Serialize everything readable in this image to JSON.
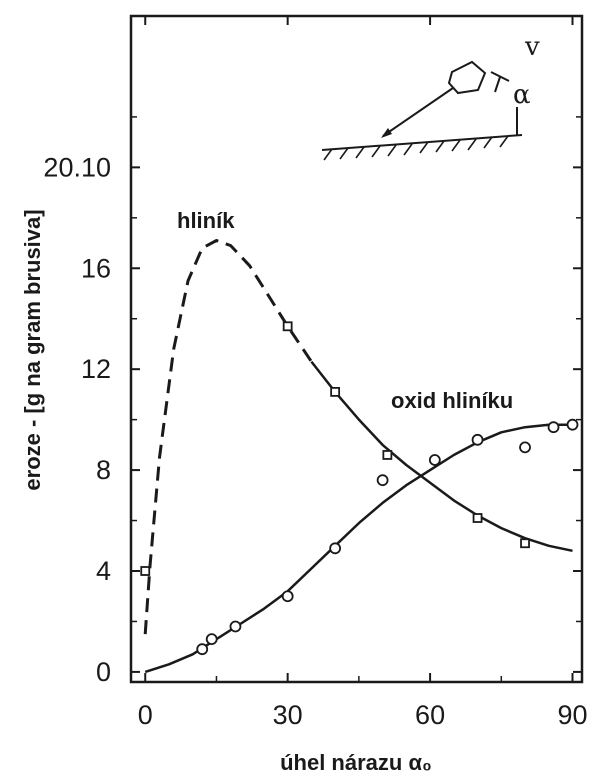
{
  "chart_data": {
    "type": "line",
    "xlabel": "úhel nárazu α₀",
    "ylabel": "eroze - [g na gram brusiva]",
    "xlim": [
      -3,
      92
    ],
    "ylim": [
      -0.4,
      26
    ],
    "x_ticks": [
      {
        "value": 0,
        "label": "0"
      },
      {
        "value": 30,
        "label": "30"
      },
      {
        "value": 60,
        "label": "60"
      },
      {
        "value": 90,
        "label": "90"
      }
    ],
    "y_ticks": [
      {
        "value": 0,
        "label": "0"
      },
      {
        "value": 4,
        "label": "4"
      },
      {
        "value": 8,
        "label": "8"
      },
      {
        "value": 12,
        "label": "12"
      },
      {
        "value": 16,
        "label": "16"
      },
      {
        "value": 20,
        "label": "20.10"
      }
    ],
    "grid": false,
    "series": [
      {
        "name": "hliník",
        "points": [
          {
            "x": 0,
            "y": 1.5,
            "label": "",
            "dashed": true
          },
          {
            "x": 1,
            "y": 4.2,
            "label": "",
            "dashed": true
          },
          {
            "x": 3,
            "y": 8.5,
            "label": "",
            "dashed": true
          },
          {
            "x": 6,
            "y": 12.8,
            "label": "",
            "dashed": true
          },
          {
            "x": 9,
            "y": 15.5,
            "label": "",
            "dashed": true
          },
          {
            "x": 12,
            "y": 16.8,
            "label": "",
            "dashed": true
          },
          {
            "x": 15,
            "y": 17.1,
            "label": "",
            "dashed": true
          },
          {
            "x": 18,
            "y": 16.9,
            "label": "",
            "dashed": true
          },
          {
            "x": 22,
            "y": 16.1,
            "label": "",
            "dashed": true
          },
          {
            "x": 26,
            "y": 14.9,
            "label": "",
            "dashed": true
          },
          {
            "x": 30,
            "y": 13.7,
            "label": "",
            "dashed": true
          },
          {
            "x": 35,
            "y": 12.3,
            "label": "",
            "dashed": true
          },
          {
            "x": 40,
            "y": 11.1,
            "label": "",
            "dashed": false
          },
          {
            "x": 45,
            "y": 10.0,
            "label": "",
            "dashed": false
          },
          {
            "x": 50,
            "y": 9.0,
            "label": "",
            "dashed": false
          },
          {
            "x": 55,
            "y": 8.2,
            "label": "",
            "dashed": false
          },
          {
            "x": 60,
            "y": 7.5,
            "label": "",
            "dashed": false
          },
          {
            "x": 65,
            "y": 6.8,
            "label": "",
            "dashed": false
          },
          {
            "x": 70,
            "y": 6.2,
            "label": "",
            "dashed": false
          },
          {
            "x": 75,
            "y": 5.7,
            "label": "",
            "dashed": false
          },
          {
            "x": 80,
            "y": 5.3,
            "label": "",
            "dashed": false
          },
          {
            "x": 85,
            "y": 5.0,
            "label": "",
            "dashed": false
          },
          {
            "x": 90,
            "y": 4.8,
            "label": "",
            "dashed": false
          }
        ],
        "markers": [
          {
            "x": 0,
            "y": 4.0,
            "shape": "square"
          },
          {
            "x": 30,
            "y": 13.7,
            "shape": "square"
          },
          {
            "x": 40,
            "y": 11.1,
            "shape": "square"
          },
          {
            "x": 51,
            "y": 8.6,
            "shape": "square"
          },
          {
            "x": 70,
            "y": 6.1,
            "shape": "square"
          },
          {
            "x": 80,
            "y": 5.1,
            "shape": "square"
          }
        ]
      },
      {
        "name": "oxid hliníku",
        "points": [
          {
            "x": 0,
            "y": 0.0,
            "label": ""
          },
          {
            "x": 5,
            "y": 0.3,
            "label": ""
          },
          {
            "x": 10,
            "y": 0.7,
            "label": ""
          },
          {
            "x": 15,
            "y": 1.3,
            "label": ""
          },
          {
            "x": 20,
            "y": 1.9,
            "label": ""
          },
          {
            "x": 25,
            "y": 2.5,
            "label": ""
          },
          {
            "x": 30,
            "y": 3.2,
            "label": ""
          },
          {
            "x": 35,
            "y": 4.1,
            "label": ""
          },
          {
            "x": 40,
            "y": 5.0,
            "label": ""
          },
          {
            "x": 45,
            "y": 5.9,
            "label": ""
          },
          {
            "x": 50,
            "y": 6.7,
            "label": ""
          },
          {
            "x": 55,
            "y": 7.4,
            "label": ""
          },
          {
            "x": 60,
            "y": 8.0,
            "label": ""
          },
          {
            "x": 65,
            "y": 8.6,
            "label": ""
          },
          {
            "x": 70,
            "y": 9.1,
            "label": ""
          },
          {
            "x": 75,
            "y": 9.5,
            "label": ""
          },
          {
            "x": 80,
            "y": 9.7,
            "label": ""
          },
          {
            "x": 85,
            "y": 9.8,
            "label": ""
          },
          {
            "x": 90,
            "y": 9.8,
            "label": ""
          }
        ],
        "markers": [
          {
            "x": 12,
            "y": 0.9,
            "shape": "circle"
          },
          {
            "x": 14,
            "y": 1.3,
            "shape": "circle"
          },
          {
            "x": 19,
            "y": 1.8,
            "shape": "circle"
          },
          {
            "x": 30,
            "y": 3.0,
            "shape": "circle"
          },
          {
            "x": 40,
            "y": 4.9,
            "shape": "circle"
          },
          {
            "x": 50,
            "y": 7.6,
            "shape": "circle"
          },
          {
            "x": 61,
            "y": 8.4,
            "shape": "circle"
          },
          {
            "x": 70,
            "y": 9.2,
            "shape": "circle"
          },
          {
            "x": 80,
            "y": 8.9,
            "shape": "circle"
          },
          {
            "x": 86,
            "y": 9.7,
            "shape": "circle"
          },
          {
            "x": 90,
            "y": 9.8,
            "shape": "circle"
          }
        ]
      }
    ],
    "inset": {
      "velocity_symbol": "v",
      "angle_symbol": "α"
    }
  },
  "colors": {
    "ink": "#1a1a1a",
    "background": "#ffffff"
  }
}
